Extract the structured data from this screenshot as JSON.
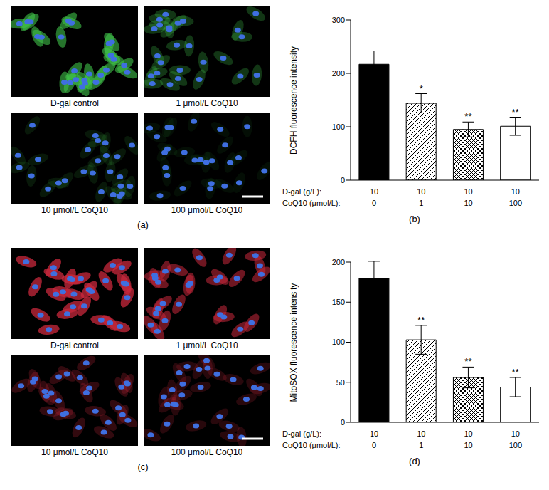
{
  "image_panels": [
    {
      "label": "(a)",
      "stain_color": "#3fc24a",
      "nucleus_color": "#3f6fe0",
      "captions": [
        "D-gal control",
        "1 μmol/L CoQ10",
        "10 μmol/L CoQ10",
        "100 μmol/L CoQ10"
      ]
    },
    {
      "label": "(c)",
      "stain_color": "#c8283c",
      "nucleus_color": "#3f6fe0",
      "captions": [
        "D-gal control",
        "1 μmol/L CoQ10",
        "10 μmol/L CoQ10",
        "100 μmol/L CoQ10"
      ]
    }
  ],
  "chart_data": [
    {
      "type": "bar",
      "panel_label": "(b)",
      "y_label": "DCFH fluorescence intensity",
      "category_labels": [
        "D-gal (g/L):",
        "CoQ10 (μmol/L):"
      ],
      "categories": [
        [
          "10",
          "0"
        ],
        [
          "10",
          "1"
        ],
        [
          "10",
          "10"
        ],
        [
          "10",
          "100"
        ]
      ],
      "values": [
        217,
        144,
        95,
        101
      ],
      "errors": [
        25,
        18,
        14,
        17
      ],
      "annotations": [
        null,
        "*",
        "**",
        "**"
      ],
      "colors": [
        "#000000",
        "#ffffff",
        "#ffffff",
        "#ffffff"
      ],
      "ylim": [
        0,
        300
      ],
      "yticks": [
        0,
        100,
        200,
        300
      ],
      "grid": false
    },
    {
      "type": "bar",
      "panel_label": "(d)",
      "y_label": "MitoSOX fluorescence intensity",
      "category_labels": [
        "D-gal (g/L):",
        "CoQ10 (μmol/L):"
      ],
      "categories": [
        [
          "10",
          "0"
        ],
        [
          "10",
          "1"
        ],
        [
          "10",
          "10"
        ],
        [
          "10",
          "100"
        ]
      ],
      "values": [
        180,
        103,
        56,
        44
      ],
      "errors": [
        21,
        18,
        13,
        12
      ],
      "annotations": [
        null,
        "**",
        "**",
        "**"
      ],
      "colors": [
        "#000000",
        "#ffffff",
        "#ffffff",
        "#ffffff"
      ],
      "ylim": [
        0,
        200
      ],
      "yticks": [
        0,
        50,
        100,
        150,
        200
      ],
      "grid": false
    }
  ]
}
